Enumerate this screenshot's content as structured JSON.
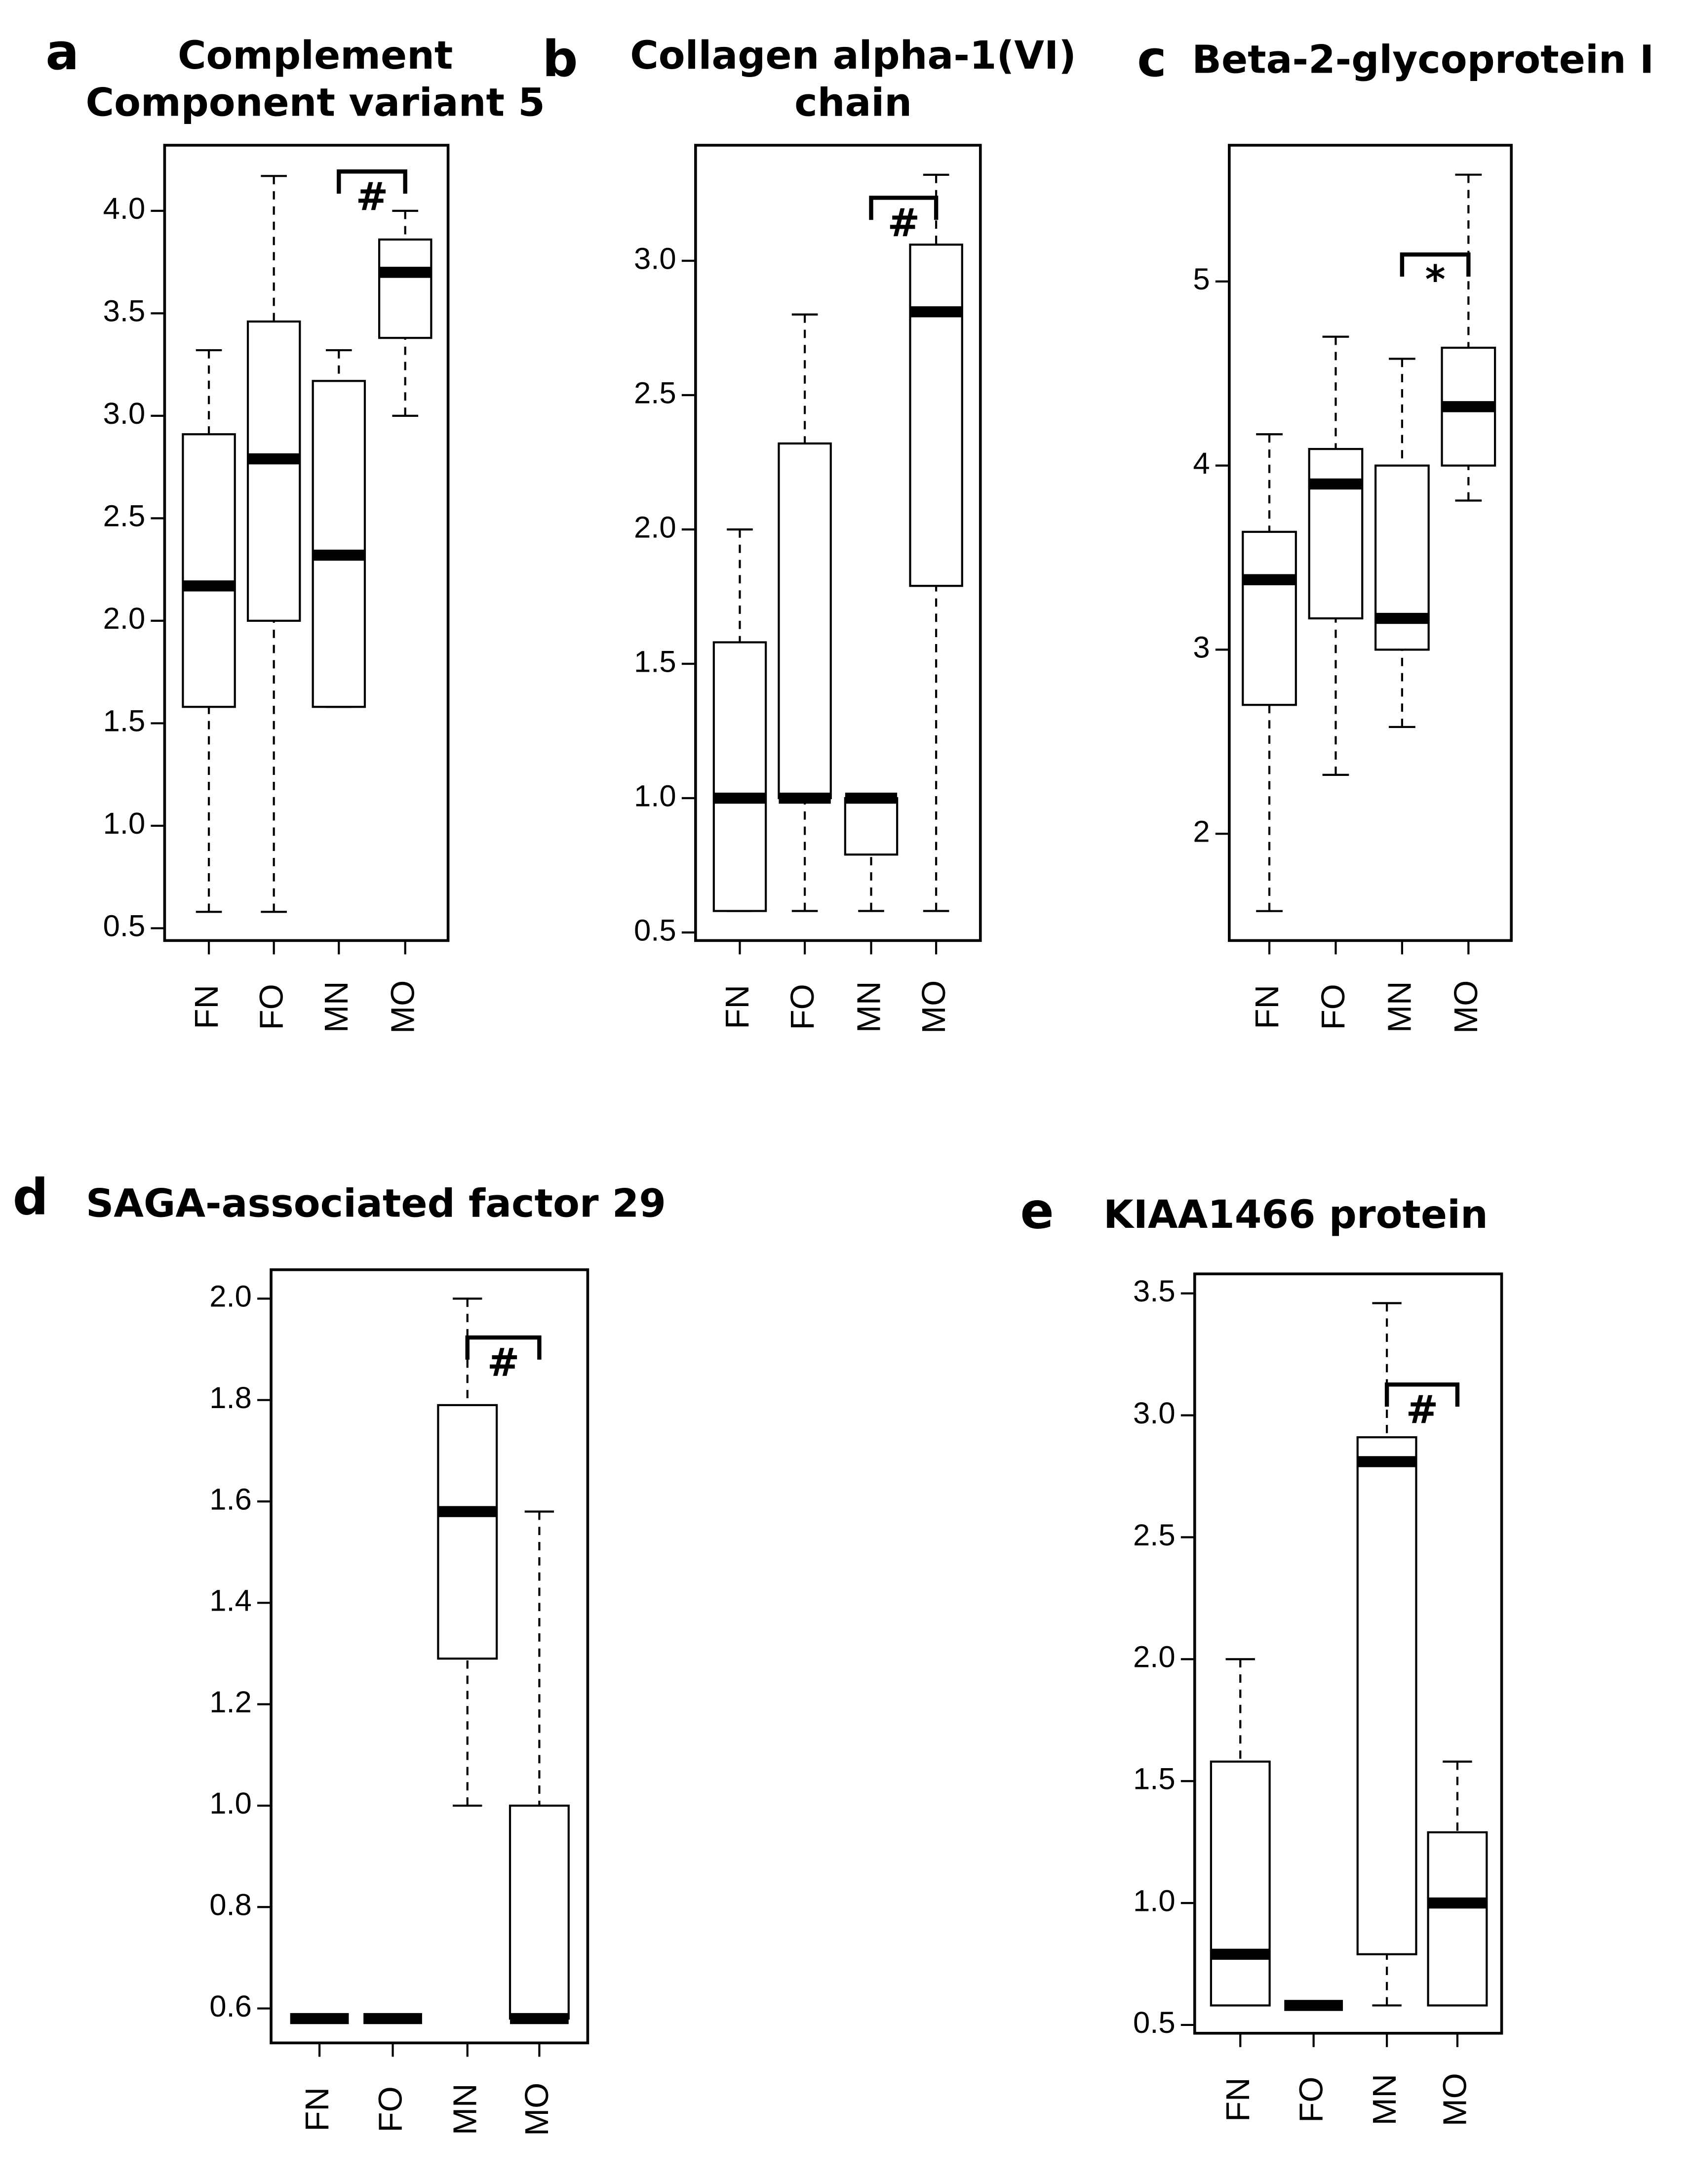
{
  "chart_data": [
    {
      "type": "box",
      "panel": "a",
      "title": [
        "Complement",
        "Component variant 5"
      ],
      "categories": [
        "FN",
        "FO",
        "MN",
        "MO"
      ],
      "color": "#000000",
      "boxes": [
        {
          "low": 0.58,
          "q1": 1.58,
          "median": 2.17,
          "q3": 2.91,
          "high": 3.32
        },
        {
          "low": 0.58,
          "q1": 2.0,
          "median": 2.79,
          "q3": 3.46,
          "high": 4.17
        },
        {
          "low": 1.58,
          "q1": 1.58,
          "median": 2.32,
          "q3": 3.17,
          "high": 3.32
        },
        {
          "low": 3.0,
          "q1": 3.38,
          "median": 3.7,
          "q3": 3.86,
          "high": 4.0
        }
      ],
      "ylim": [
        0.44,
        4.32
      ],
      "yticks": [
        0.5,
        {
          "value": 1,
          "label": "1.0"
        },
        1.5,
        {
          "value": 2,
          "label": "2.0"
        },
        2.5,
        {
          "value": 3,
          "label": "3.0"
        },
        3.5,
        {
          "value": 4,
          "label": "4.0"
        }
      ],
      "annotations": [
        {
          "text": "#",
          "between": [
            "MN",
            "MO"
          ]
        }
      ]
    },
    {
      "type": "box",
      "panel": "b",
      "title": [
        "Collagen alpha-1(VI)",
        "chain"
      ],
      "categories": [
        "FN",
        "FO",
        "MN",
        "MO"
      ],
      "color": "#000000",
      "boxes": [
        {
          "low": 0.58,
          "q1": 0.58,
          "median": 1.0,
          "q3": 1.58,
          "high": 2.0
        },
        {
          "low": 0.58,
          "q1": 1.0,
          "median": 1.0,
          "q3": 2.32,
          "high": 2.8
        },
        {
          "low": 0.58,
          "q1": 0.79,
          "median": 1.0,
          "q3": 1.0,
          "high": 1.0
        },
        {
          "low": 0.58,
          "q1": 1.79,
          "median": 2.81,
          "q3": 3.06,
          "high": 3.32
        }
      ],
      "ylim": [
        0.47,
        3.43
      ],
      "yticks": [
        0.5,
        {
          "value": 1,
          "label": "1.0"
        },
        1.5,
        {
          "value": 2,
          "label": "2.0"
        },
        2.5,
        {
          "value": 3,
          "label": "3.0"
        }
      ],
      "annotations": [
        {
          "text": "#",
          "between": [
            "MN",
            "MO"
          ]
        }
      ]
    },
    {
      "type": "box",
      "panel": "c",
      "title": [
        "Beta-2-glycoprotein I"
      ],
      "categories": [
        "FN",
        "FO",
        "MN",
        "MO"
      ],
      "color": "#000000",
      "boxes": [
        {
          "low": 1.58,
          "q1": 2.7,
          "median": 3.38,
          "q3": 3.64,
          "high": 4.17
        },
        {
          "low": 2.32,
          "q1": 3.17,
          "median": 3.9,
          "q3": 4.09,
          "high": 4.7
        },
        {
          "low": 2.58,
          "q1": 3.0,
          "median": 3.17,
          "q3": 4.0,
          "high": 4.58
        },
        {
          "low": 3.81,
          "q1": 4.0,
          "median": 4.32,
          "q3": 4.64,
          "high": 5.58
        }
      ],
      "ylim": [
        1.42,
        5.74
      ],
      "yticks": [
        2,
        3,
        4,
        5
      ],
      "annotations": [
        {
          "text": "*",
          "between": [
            "MN",
            "MO"
          ]
        }
      ]
    },
    {
      "type": "box",
      "panel": "d",
      "title": [
        "SAGA-associated factor 29"
      ],
      "categories": [
        "FN",
        "FO",
        "MN",
        "MO"
      ],
      "color": "#000000",
      "boxes": [
        {
          "low": 0.58,
          "q1": 0.58,
          "median": 0.58,
          "q3": 0.58,
          "high": 0.58
        },
        {
          "low": 0.58,
          "q1": 0.58,
          "median": 0.58,
          "q3": 0.58,
          "high": 0.58
        },
        {
          "low": 1.0,
          "q1": 1.29,
          "median": 1.58,
          "q3": 1.79,
          "high": 2.0
        },
        {
          "low": 0.58,
          "q1": 0.58,
          "median": 0.58,
          "q3": 1.0,
          "high": 1.58
        }
      ],
      "ylim": [
        0.532,
        2.057
      ],
      "yticks": [
        0.6,
        0.8,
        {
          "value": 1,
          "label": "1.0"
        },
        1.2,
        1.4,
        1.6,
        1.8,
        {
          "value": 2,
          "label": "2.0"
        }
      ],
      "annotations": [
        {
          "text": "#",
          "between": [
            "MN",
            "MO"
          ]
        }
      ]
    },
    {
      "type": "box",
      "panel": "e",
      "title": [
        "KIAA1466 protein"
      ],
      "categories": [
        "FN",
        "FO",
        "MN",
        "MO"
      ],
      "color": "#000000",
      "boxes": [
        {
          "low": 0.58,
          "q1": 0.58,
          "median": 0.79,
          "q3": 1.58,
          "high": 2.0
        },
        {
          "low": 0.58,
          "q1": 0.58,
          "median": 0.58,
          "q3": 0.58,
          "high": 0.58
        },
        {
          "low": 0.58,
          "q1": 0.79,
          "median": 2.81,
          "q3": 2.91,
          "high": 3.46
        },
        {
          "low": 0.58,
          "q1": 0.58,
          "median": 1.0,
          "q3": 1.29,
          "high": 1.58
        }
      ],
      "ylim": [
        0.466,
        3.58
      ],
      "yticks": [
        0.5,
        {
          "value": 1,
          "label": "1.0"
        },
        1.5,
        {
          "value": 2,
          "label": "2.0"
        },
        2.5,
        {
          "value": 3,
          "label": "3.0"
        },
        3.5
      ],
      "annotations": [
        {
          "text": "#",
          "between": [
            "MN",
            "MO"
          ]
        }
      ]
    }
  ]
}
